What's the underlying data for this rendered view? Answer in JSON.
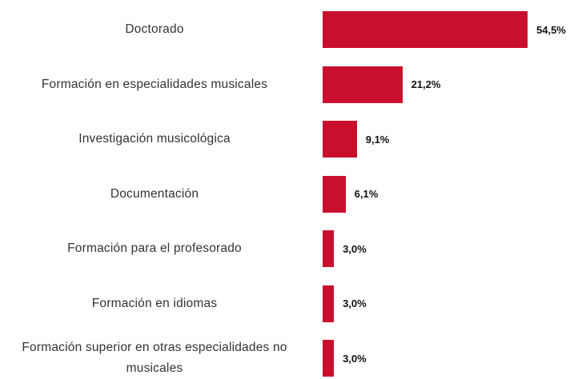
{
  "chart_data": {
    "type": "hbar",
    "categories": [
      "Doctorado",
      "Formación en especialidades musicales",
      "Investigación musicológica",
      "Documentación",
      "Formación para el profesorado",
      "Formación en idiomas",
      "Formación superior en otras especialidades no musicales"
    ],
    "values": [
      54.5,
      21.2,
      9.1,
      6.1,
      3.0,
      3.0,
      3.0
    ],
    "value_labels": [
      "54,5%",
      "21,2%",
      "9,1%",
      "6,1%",
      "3,0%",
      "3,0%",
      "3,0%"
    ],
    "color": "#c8102e"
  }
}
